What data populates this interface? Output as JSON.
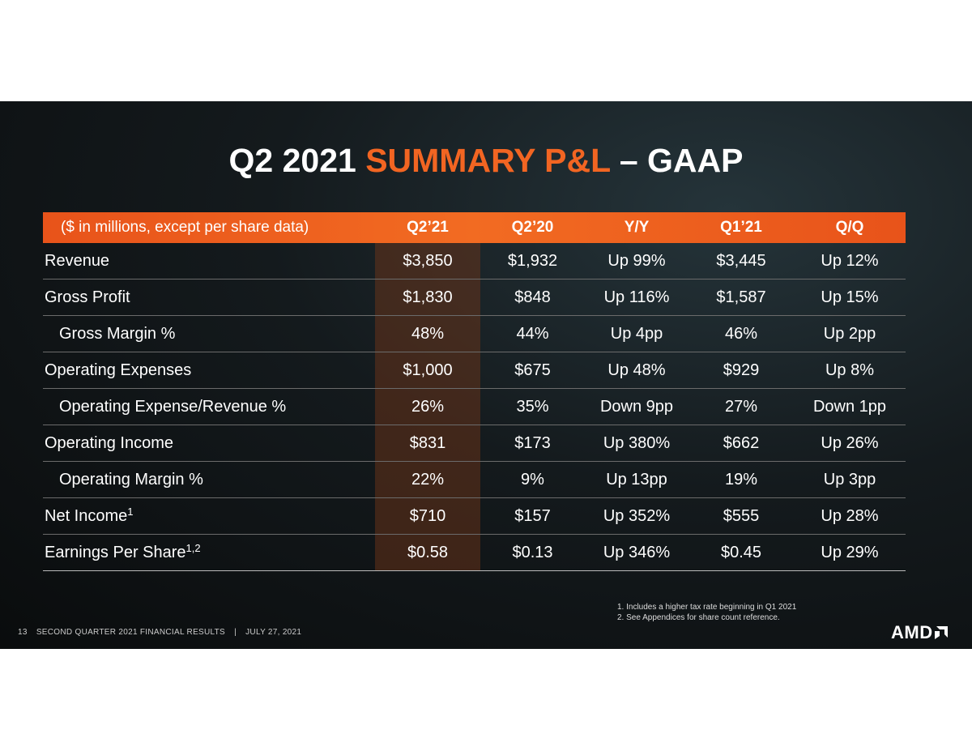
{
  "title": {
    "part1": "Q2 2021",
    "part2": "SUMMARY P&L",
    "part3": "– GAAP"
  },
  "table": {
    "header": [
      "($ in millions, except per share data)",
      "Q2’21",
      "Q2’20",
      "Y/Y",
      "Q1’21",
      "Q/Q"
    ],
    "rows": [
      {
        "label": "Revenue",
        "indent": false,
        "cells": [
          "$3,850",
          "$1,932",
          "Up 99%",
          "$3,445",
          "Up 12%"
        ]
      },
      {
        "label": "Gross Profit",
        "indent": false,
        "cells": [
          "$1,830",
          "$848",
          "Up 116%",
          "$1,587",
          "Up 15%"
        ]
      },
      {
        "label": "Gross Margin %",
        "indent": true,
        "cells": [
          "48%",
          "44%",
          "Up 4pp",
          "46%",
          "Up 2pp"
        ]
      },
      {
        "label": "Operating Expenses",
        "indent": false,
        "cells": [
          "$1,000",
          "$675",
          "Up 48%",
          "$929",
          "Up 8%"
        ]
      },
      {
        "label": "Operating Expense/Revenue %",
        "indent": true,
        "cells": [
          "26%",
          "35%",
          "Down 9pp",
          "27%",
          "Down 1pp"
        ]
      },
      {
        "label": "Operating Income",
        "indent": false,
        "cells": [
          "$831",
          "$173",
          "Up 380%",
          "$662",
          "Up 26%"
        ]
      },
      {
        "label": "Operating Margin %",
        "indent": true,
        "cells": [
          "22%",
          "9%",
          "Up 13pp",
          "19%",
          "Up 3pp"
        ]
      },
      {
        "label": "Net Income",
        "sup": "1",
        "indent": false,
        "cells": [
          "$710",
          "$157",
          "Up 352%",
          "$555",
          "Up 28%"
        ]
      },
      {
        "label": "Earnings Per Share",
        "sup": "1,2",
        "indent": false,
        "cells": [
          "$0.58",
          "$0.13",
          "Up 346%",
          "$0.45",
          "Up 29%"
        ]
      }
    ]
  },
  "footnotes": [
    "1. Includes a higher tax rate beginning in Q1 2021",
    "2. See Appendices for share count reference."
  ],
  "footer": {
    "page": "13",
    "text": "SECOND QUARTER 2021 FINANCIAL RESULTS",
    "separator": "|",
    "date": "JULY 27, 2021"
  },
  "logo": "AMD"
}
